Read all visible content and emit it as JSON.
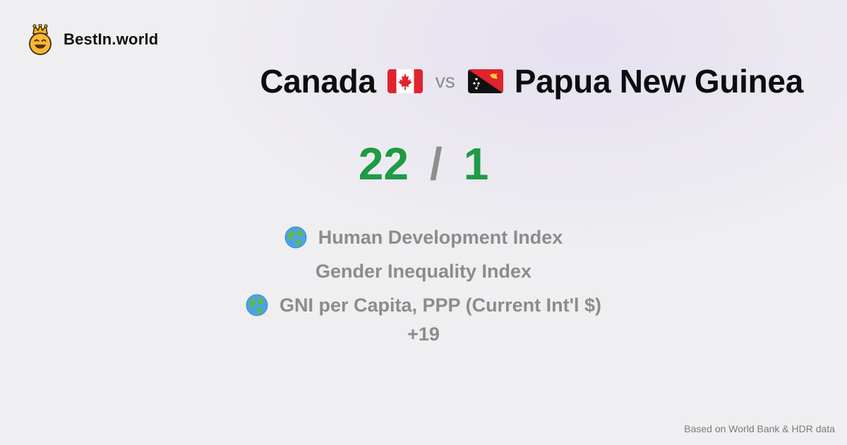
{
  "brand": {
    "name": "BestIn.world",
    "logo_icon": "crowned-smiley-icon"
  },
  "title": {
    "country_a": "Canada",
    "country_a_flag": "canada-flag-icon",
    "vs": "vs",
    "country_b": "Papua New Guinea",
    "country_b_flag": "papua-new-guinea-flag-icon"
  },
  "score": {
    "a": "22",
    "separator": "/",
    "b": "1"
  },
  "categories": [
    {
      "label": "Human Development Index",
      "icon": "globe-icon"
    },
    {
      "label": "Gender Inequality Index",
      "icon": ""
    },
    {
      "label": "GNI per Capita, PPP (Current Int'l $)",
      "icon": "globe-icon"
    }
  ],
  "more": "+19",
  "footer": {
    "source": "Based on World Bank & HDR data"
  },
  "colors": {
    "score": "#1f9a45",
    "muted": "#8c8c8c",
    "text": "#0d0d0d"
  }
}
